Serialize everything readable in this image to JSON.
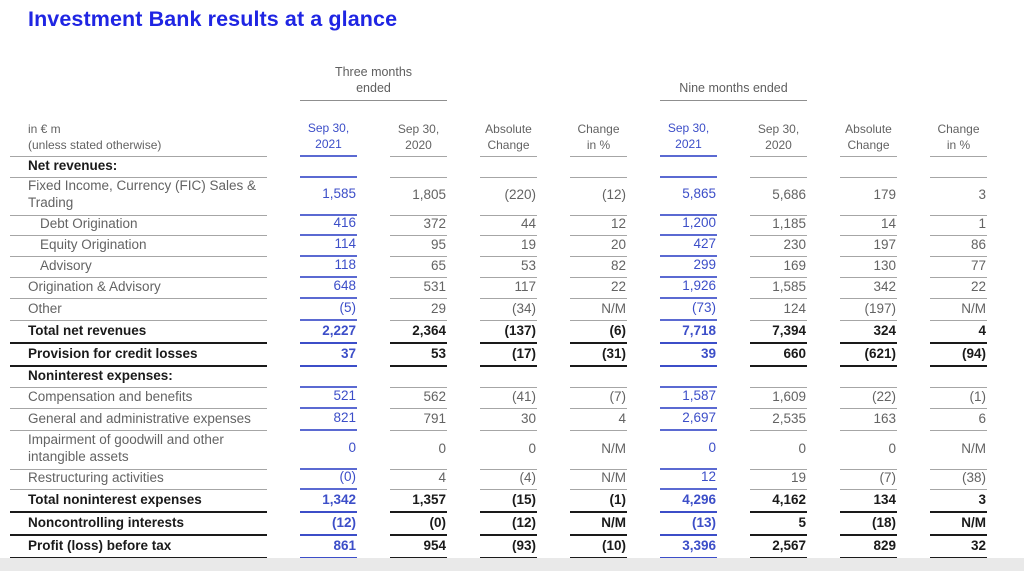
{
  "page": {
    "title": "Investment Bank results at a glance"
  },
  "table": {
    "groups": {
      "three_months_line1": "Three months",
      "three_months_line2": "ended",
      "nine_months": "Nine months ended"
    },
    "unit": {
      "line1": "in € m",
      "line2": "(unless stated otherwise)"
    },
    "columns": [
      {
        "line1": "Sep 30,",
        "line2": "2021",
        "highlight": true
      },
      {
        "line1": "Sep 30,",
        "line2": "2020",
        "highlight": false
      },
      {
        "line1": "Absolute",
        "line2": "Change",
        "highlight": false
      },
      {
        "line1": "Change",
        "line2": "in %",
        "highlight": false
      },
      {
        "line1": "Sep 30,",
        "line2": "2021",
        "highlight": true
      },
      {
        "line1": "Sep 30,",
        "line2": "2020",
        "highlight": false
      },
      {
        "line1": "Absolute",
        "line2": "Change",
        "highlight": false
      },
      {
        "line1": "Change",
        "line2": "in %",
        "highlight": false
      }
    ],
    "rows": [
      {
        "type": "section",
        "label": "Net revenues:",
        "values": [
          "",
          "",
          "",
          "",
          "",
          "",
          "",
          ""
        ]
      },
      {
        "type": "normal",
        "tall": true,
        "label": "Fixed Income, Currency (FIC) Sales & Trading",
        "values": [
          "1,585",
          "1,805",
          "(220)",
          "(12)",
          "5,865",
          "5,686",
          "179",
          "3"
        ]
      },
      {
        "type": "sub",
        "label": "Debt Origination",
        "values": [
          "416",
          "372",
          "44",
          "12",
          "1,200",
          "1,185",
          "14",
          "1"
        ]
      },
      {
        "type": "sub",
        "label": "Equity Origination",
        "values": [
          "114",
          "95",
          "19",
          "20",
          "427",
          "230",
          "197",
          "86"
        ]
      },
      {
        "type": "sub",
        "label": "Advisory",
        "values": [
          "118",
          "65",
          "53",
          "82",
          "299",
          "169",
          "130",
          "77"
        ]
      },
      {
        "type": "normal",
        "label": "Origination & Advisory",
        "values": [
          "648",
          "531",
          "117",
          "22",
          "1,926",
          "1,585",
          "342",
          "22"
        ]
      },
      {
        "type": "normal",
        "label": "Other",
        "values": [
          "(5)",
          "29",
          "(34)",
          "N/M",
          "(73)",
          "124",
          "(197)",
          "N/M"
        ]
      },
      {
        "type": "total",
        "label": "Total net revenues",
        "values": [
          "2,227",
          "2,364",
          "(137)",
          "(6)",
          "7,718",
          "7,394",
          "324",
          "4"
        ]
      },
      {
        "type": "total",
        "label": "Provision for credit losses",
        "values": [
          "37",
          "53",
          "(17)",
          "(31)",
          "39",
          "660",
          "(621)",
          "(94)"
        ]
      },
      {
        "type": "section",
        "label": "Noninterest expenses:",
        "values": [
          "",
          "",
          "",
          "",
          "",
          "",
          "",
          ""
        ]
      },
      {
        "type": "normal",
        "label": "Compensation and benefits",
        "values": [
          "521",
          "562",
          "(41)",
          "(7)",
          "1,587",
          "1,609",
          "(22)",
          "(1)"
        ]
      },
      {
        "type": "normal",
        "label": "General and administrative expenses",
        "values": [
          "821",
          "791",
          "30",
          "4",
          "2,697",
          "2,535",
          "163",
          "6"
        ]
      },
      {
        "type": "normal",
        "tall": true,
        "label": "Impairment of goodwill and other intangible assets",
        "values": [
          "0",
          "0",
          "0",
          "N/M",
          "0",
          "0",
          "0",
          "N/M"
        ]
      },
      {
        "type": "normal",
        "label": "Restructuring activities",
        "values": [
          "(0)",
          "4",
          "(4)",
          "N/M",
          "12",
          "19",
          "(7)",
          "(38)"
        ]
      },
      {
        "type": "total",
        "label": "Total noninterest expenses",
        "values": [
          "1,342",
          "1,357",
          "(15)",
          "(1)",
          "4,296",
          "4,162",
          "134",
          "3"
        ]
      },
      {
        "type": "total",
        "label": "Noncontrolling interests",
        "values": [
          "(12)",
          "(0)",
          "(12)",
          "N/M",
          "(13)",
          "5",
          "(18)",
          "N/M"
        ]
      },
      {
        "type": "total",
        "label": "Profit (loss) before tax",
        "values": [
          "861",
          "954",
          "(93)",
          "(10)",
          "3,396",
          "2,567",
          "829",
          "32"
        ]
      }
    ]
  },
  "colors": {
    "title_blue": "#1f25e3",
    "link_blue": "#3c4ec8",
    "line_blue": "#5b6ad2",
    "text_gray": "#636363",
    "line_gray": "#a6a6a6",
    "text_black": "#1a1a1a",
    "footer_gray": "#e9e9e9"
  }
}
